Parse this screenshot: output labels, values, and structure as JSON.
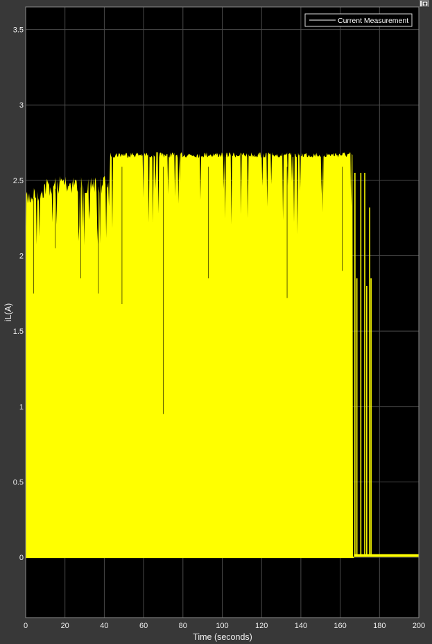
{
  "chart_data": {
    "type": "line",
    "title": "",
    "xlabel": "Time (seconds)",
    "ylabel": "iL(A)",
    "xlim": [
      0,
      200
    ],
    "ylim": [
      -0.4,
      3.65
    ],
    "x_ticks": [
      0,
      20,
      40,
      60,
      80,
      100,
      120,
      140,
      160,
      180,
      200
    ],
    "x_tick_labels": [
      "0",
      "20",
      "40",
      "60",
      "80",
      "100",
      "120",
      "140",
      "160",
      "180",
      "200"
    ],
    "y_ticks": [
      0,
      0.5,
      1,
      1.5,
      2,
      2.5,
      3,
      3.5
    ],
    "y_tick_labels": [
      "0",
      "0.5",
      "1",
      "1.5",
      "2",
      "2.5",
      "3",
      "3.5"
    ],
    "grid": true,
    "legend_position": "top-right",
    "background_color": "#000000",
    "series_color": "#ffff00",
    "series": [
      {
        "name": "Current Measurement",
        "description_peaks": [
          {
            "x": 0,
            "y": 2.45
          },
          {
            "x": 10,
            "y": 2.53
          },
          {
            "x": 20,
            "y": 2.56
          },
          {
            "x": 30,
            "y": 2.55
          },
          {
            "x": 42,
            "y": 2.56
          },
          {
            "x": 43,
            "y": 2.69
          },
          {
            "x": 80,
            "y": 2.69
          },
          {
            "x": 120,
            "y": 2.69
          },
          {
            "x": 166,
            "y": 2.69
          },
          {
            "x": 168,
            "y": 2.55
          },
          {
            "x": 172,
            "y": 2.55
          },
          {
            "x": 175,
            "y": 2.32
          },
          {
            "x": 176,
            "y": 0.02
          },
          {
            "x": 200,
            "y": 0.02
          }
        ],
        "description_troughs": [
          {
            "x": 0,
            "y": 0.0
          },
          {
            "x": 166,
            "y": 0.0
          },
          {
            "x": 167,
            "y": 0.01
          },
          {
            "x": 176,
            "y": 0.01
          },
          {
            "x": 200,
            "y": 0.01
          }
        ]
      }
    ]
  },
  "toolbar": {
    "undock_icon": "undock-arrow-icon"
  }
}
